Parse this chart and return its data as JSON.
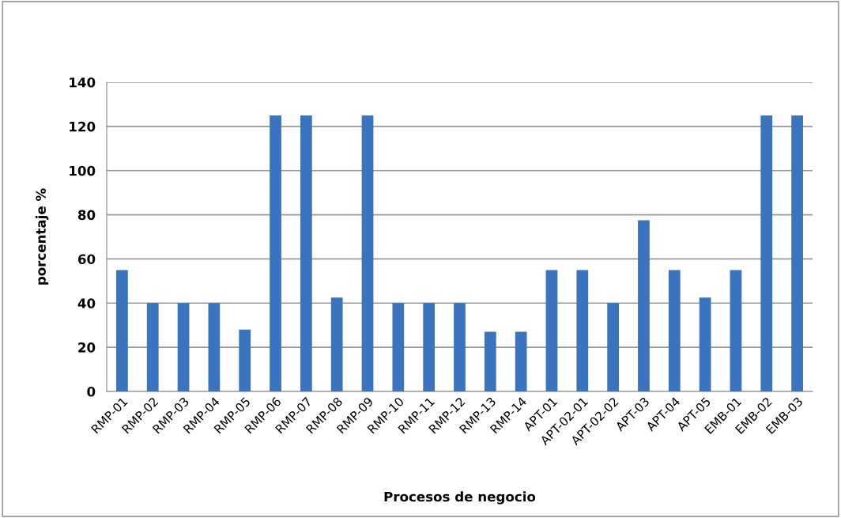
{
  "chart_data": {
    "type": "bar",
    "xlabel": "Procesos de negocio",
    "ylabel": "porcentaje %",
    "categories": [
      "RMP-01",
      "RMP-02",
      "RMP-03",
      "RMP-04",
      "RMP-05",
      "RMP-06",
      "RMP-07",
      "RMP-08",
      "RMP-09",
      "RMP-10",
      "RMP-11",
      "RMP-12",
      "RMP-13",
      "RMP-14",
      "APT-01",
      "APT-02-01",
      "APT-02-02",
      "APT-03",
      "APT-04",
      "APT-05",
      "EMB-01",
      "EMB-02",
      "EMB-03"
    ],
    "values": [
      55,
      40,
      40,
      40,
      28,
      125,
      125,
      42.5,
      125,
      40,
      40,
      40,
      27,
      27,
      55,
      55,
      40,
      77.5,
      55,
      42.5,
      55,
      125,
      125
    ],
    "color": "#3a74bf",
    "ylim": [
      0,
      140
    ],
    "yticks": [
      0,
      20,
      40,
      60,
      80,
      100,
      120,
      140
    ],
    "grid": "y"
  }
}
